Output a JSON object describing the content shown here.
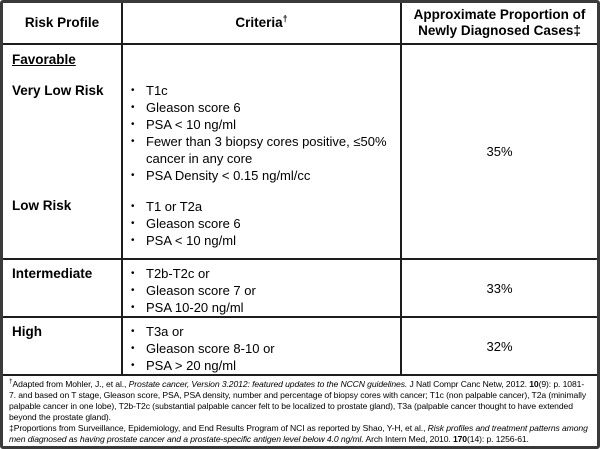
{
  "colors": {
    "background": "#ffffff",
    "border_outer": "#3a3a3a",
    "border_inner": "#1d1d1d",
    "text": "#000000"
  },
  "table": {
    "headers": {
      "risk_profile": "Risk Profile",
      "criteria": "Criteria",
      "criteria_sup": "†",
      "proportion": "Approximate Proportion of Newly Diagnosed Cases‡"
    },
    "favorable": {
      "group_label": "Favorable",
      "proportion": "35%",
      "sub": [
        {
          "risk": "Very Low Risk",
          "criteria": [
            "T1c",
            "Gleason score 6",
            "PSA < 10 ng/ml",
            "Fewer than 3 biopsy cores positive, ≤50% cancer in any core",
            "PSA Density < 0.15 ng/ml/cc"
          ]
        },
        {
          "risk": "Low Risk",
          "criteria": [
            "T1 or T2a",
            "Gleason score 6",
            "PSA < 10 ng/ml"
          ]
        }
      ]
    },
    "rows": [
      {
        "risk": "Intermediate",
        "criteria": [
          "T2b-T2c or",
          "Gleason score 7 or",
          "PSA 10-20 ng/ml"
        ],
        "proportion": "33%"
      },
      {
        "risk": "High",
        "criteria": [
          "T3a or",
          "Gleason score 8-10 or",
          "PSA > 20 ng/ml"
        ],
        "proportion": "32%"
      }
    ],
    "bullet_glyph": "•"
  },
  "footnotes": [
    {
      "marker": "†",
      "segments": [
        "Adapted  from Mohler, J., et al., ",
        "Prostate cancer, Version 3.2012: featured updates to the NCCN guidelines.",
        " J Natl Compr Canc Netw, 2012. ",
        "10",
        "(9): p. 1081-7.  and based on T stage, Gleason score, PSA, PSA density, number and percentage of biopsy cores with cancer; T1c (non palpable cancer), T2a (minimally palpable cancer in one lobe), T2b-T2c (substantial palpable cancer felt to be localized to prostate gland), T3a (palpable cancer thought to have extended beyond the prostate gland)."
      ]
    },
    {
      "marker": "‡",
      "segments": [
        "Proportions from Surveillance, Epidemiology, and End Results Program of NCI as reported by Shao, Y-H, et al., ",
        "Risk profiles and treatment patterns among men diagnosed as having prostate cancer and a prostate-specific antigen level below 4.0 ng/ml.",
        " Arch Intern Med, 2010. ",
        "170",
        "(14): p. 1256-61."
      ]
    }
  ]
}
